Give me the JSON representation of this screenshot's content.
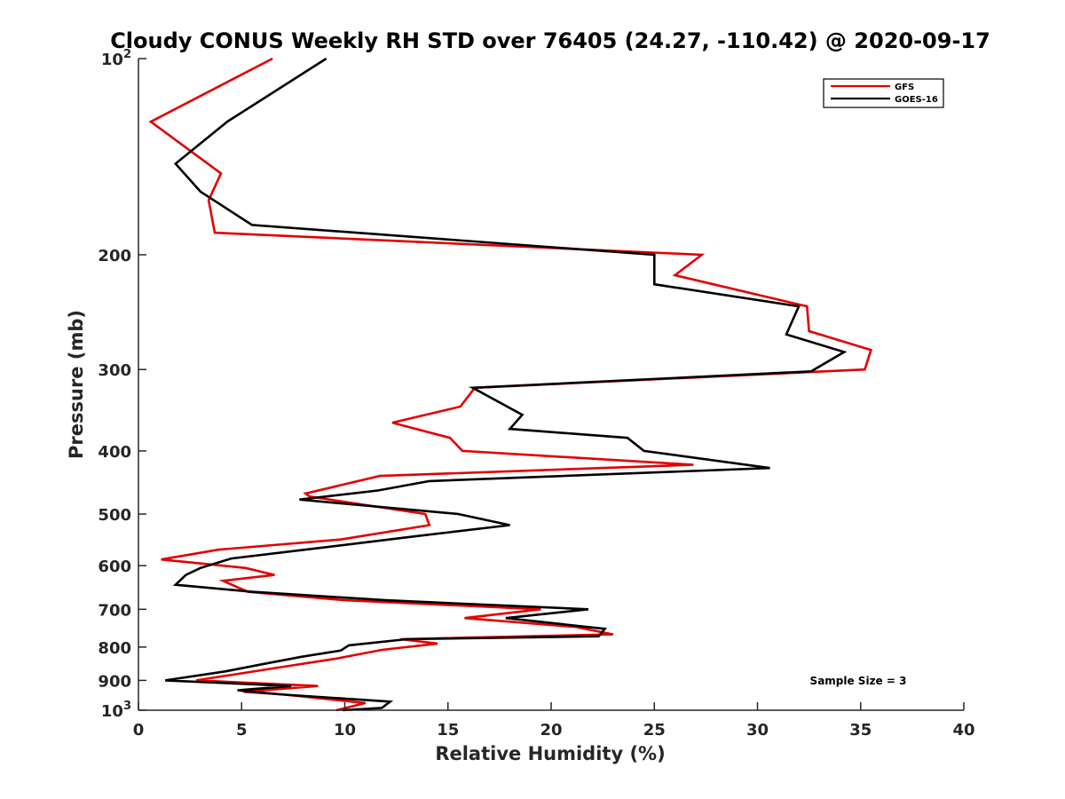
{
  "chart_data": {
    "type": "line",
    "title": "Cloudy CONUS Weekly RH STD over 76405 (24.27, -110.42) @ 2020-09-17",
    "xlabel": "Relative Humidity (%)",
    "ylabel": "Pressure (mb)",
    "xlim": [
      0,
      40
    ],
    "ylim": [
      100,
      1000
    ],
    "y_scale": "log",
    "y_reversed": true,
    "x_ticks": [
      0,
      5,
      10,
      15,
      20,
      25,
      30,
      35,
      40
    ],
    "y_ticks": [
      {
        "value": 100,
        "base": "10",
        "exp": "2"
      },
      {
        "value": 200,
        "label": "200"
      },
      {
        "value": 300,
        "label": "300"
      },
      {
        "value": 400,
        "label": "400"
      },
      {
        "value": 500,
        "label": "500"
      },
      {
        "value": 600,
        "label": "600"
      },
      {
        "value": 700,
        "label": "700"
      },
      {
        "value": 800,
        "label": "800"
      },
      {
        "value": 900,
        "label": "900"
      },
      {
        "value": 1000,
        "base": "10",
        "exp": "3"
      }
    ],
    "grid": false,
    "legend_position": "top-right",
    "annotation": "Sample Size = 3",
    "series": [
      {
        "name": "GFS",
        "color": "#e30000",
        "points": [
          [
            6.5,
            100
          ],
          [
            0.6,
            125
          ],
          [
            4.0,
            150
          ],
          [
            3.4,
            165
          ],
          [
            3.7,
            185
          ],
          [
            27.3,
            200
          ],
          [
            26.0,
            215
          ],
          [
            32.4,
            240
          ],
          [
            32.5,
            262
          ],
          [
            35.5,
            280
          ],
          [
            35.2,
            300
          ],
          [
            16.3,
            320
          ],
          [
            15.6,
            342
          ],
          [
            12.3,
            362
          ],
          [
            15.1,
            382
          ],
          [
            15.7,
            400
          ],
          [
            26.9,
            420
          ],
          [
            11.7,
            437
          ],
          [
            8.1,
            465
          ],
          [
            8.3,
            470
          ],
          [
            13.9,
            500
          ],
          [
            14.1,
            520
          ],
          [
            9.8,
            547
          ],
          [
            3.9,
            567
          ],
          [
            1.1,
            587
          ],
          [
            5.2,
            605
          ],
          [
            6.6,
            620
          ],
          [
            4.1,
            633
          ],
          [
            5.3,
            658
          ],
          [
            10.0,
            678
          ],
          [
            19.5,
            700
          ],
          [
            15.8,
            722
          ],
          [
            21.2,
            745
          ],
          [
            23.0,
            765
          ],
          [
            12.7,
            778
          ],
          [
            14.5,
            790
          ],
          [
            11.8,
            808
          ],
          [
            9.6,
            833
          ],
          [
            6.8,
            860
          ],
          [
            2.8,
            900
          ],
          [
            8.7,
            918
          ],
          [
            5.1,
            937
          ],
          [
            6.9,
            945
          ],
          [
            11.0,
            975
          ],
          [
            9.6,
            1000
          ]
        ]
      },
      {
        "name": "GOES-16",
        "color": "#000000",
        "points": [
          [
            9.1,
            100
          ],
          [
            4.3,
            125
          ],
          [
            1.8,
            145
          ],
          [
            3.0,
            160
          ],
          [
            5.5,
            180
          ],
          [
            25.0,
            200
          ],
          [
            25.0,
            222
          ],
          [
            32.0,
            240
          ],
          [
            31.4,
            265
          ],
          [
            34.2,
            282
          ],
          [
            32.6,
            302
          ],
          [
            16.2,
            320
          ],
          [
            18.6,
            352
          ],
          [
            18.0,
            370
          ],
          [
            23.7,
            382
          ],
          [
            24.5,
            400
          ],
          [
            30.6,
            425
          ],
          [
            14.1,
            445
          ],
          [
            11.6,
            460
          ],
          [
            7.8,
            475
          ],
          [
            15.5,
            500
          ],
          [
            18.0,
            520
          ],
          [
            13.6,
            540
          ],
          [
            9.5,
            560
          ],
          [
            4.5,
            585
          ],
          [
            3.0,
            605
          ],
          [
            2.3,
            620
          ],
          [
            1.8,
            642
          ],
          [
            5.5,
            658
          ],
          [
            12.0,
            678
          ],
          [
            21.8,
            700
          ],
          [
            17.8,
            722
          ],
          [
            22.6,
            750
          ],
          [
            22.3,
            770
          ],
          [
            13.0,
            778
          ],
          [
            10.2,
            795
          ],
          [
            9.8,
            810
          ],
          [
            7.9,
            828
          ],
          [
            6.0,
            850
          ],
          [
            4.2,
            872
          ],
          [
            1.3,
            900
          ],
          [
            7.4,
            918
          ],
          [
            4.8,
            932
          ],
          [
            6.8,
            945
          ],
          [
            12.2,
            970
          ],
          [
            11.8,
            992
          ],
          [
            9.9,
            1000
          ]
        ]
      }
    ]
  }
}
